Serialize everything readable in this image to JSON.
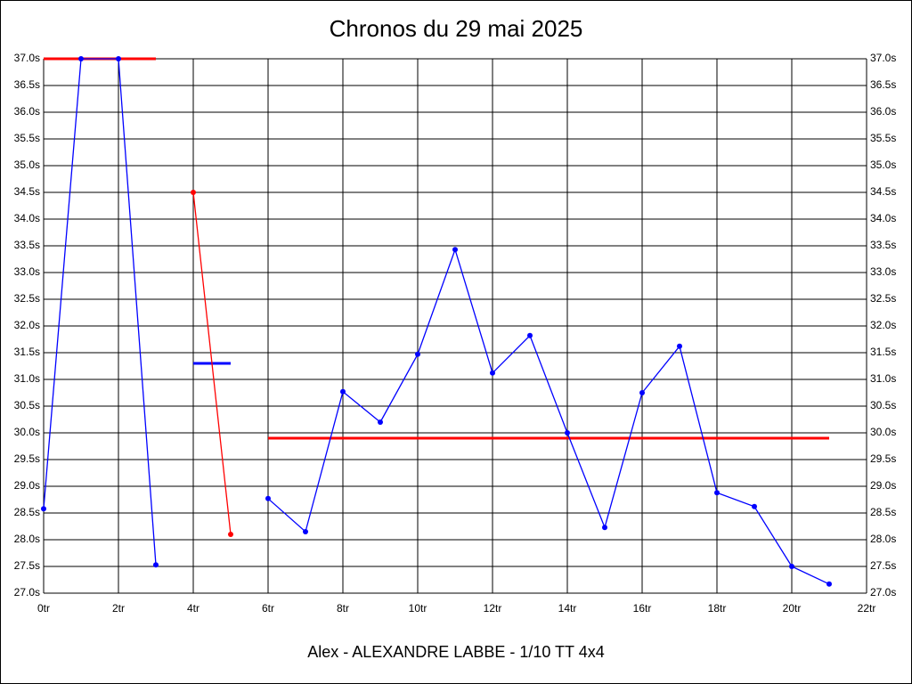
{
  "chart_data": {
    "type": "line",
    "title": "Chronos du 29 mai 2025",
    "subtitle": "Alex - ALEXANDRE LABBE - 1/10 TT 4x4",
    "x": [
      0,
      1,
      2,
      3,
      4,
      5,
      6,
      7,
      8,
      9,
      10,
      11,
      12,
      13,
      14,
      15,
      16,
      17,
      18,
      19,
      20,
      21
    ],
    "series": [
      {
        "color": "#0000ff",
        "values": [
          28.58,
          37.0,
          37.0,
          27.53,
          null,
          null,
          28.77,
          28.15,
          30.77,
          30.2,
          31.47,
          33.43,
          31.12,
          31.82,
          30.0,
          28.23,
          30.75,
          31.62,
          28.88,
          28.62,
          27.5,
          27.17
        ]
      },
      {
        "color": "#ff0000",
        "values": [
          null,
          null,
          null,
          null,
          34.5,
          28.1,
          null,
          null,
          null,
          null,
          null,
          null,
          null,
          null,
          null,
          null,
          null,
          null,
          null,
          null,
          null,
          null
        ]
      }
    ],
    "reference_lines": [
      {
        "from": 0,
        "to": 3,
        "value": 37.0,
        "color": "#ff0000"
      },
      {
        "from": 4,
        "to": 5,
        "value": 31.3,
        "color": "#0000ff"
      },
      {
        "from": 6,
        "to": 21,
        "value": 29.9,
        "color": "#ff0000"
      }
    ],
    "xlim": [
      0,
      22
    ],
    "xticks": [
      {
        "value": 0,
        "label": "0tr"
      },
      {
        "value": 2,
        "label": "2tr"
      },
      {
        "value": 4,
        "label": "4tr"
      },
      {
        "value": 6,
        "label": "6tr"
      },
      {
        "value": 8,
        "label": "8tr"
      },
      {
        "value": 10,
        "label": "10tr"
      },
      {
        "value": 12,
        "label": "12tr"
      },
      {
        "value": 14,
        "label": "14tr"
      },
      {
        "value": 16,
        "label": "16tr"
      },
      {
        "value": 18,
        "label": "18tr"
      },
      {
        "value": 20,
        "label": "20tr"
      },
      {
        "value": 22,
        "label": "22tr"
      }
    ],
    "ylim": [
      27.0,
      37.0
    ],
    "yticks": [
      {
        "value": 27.0,
        "label": "27.0s"
      },
      {
        "value": 27.5,
        "label": "27.5s"
      },
      {
        "value": 28.0,
        "label": "28.0s"
      },
      {
        "value": 28.5,
        "label": "28.5s"
      },
      {
        "value": 29.0,
        "label": "29.0s"
      },
      {
        "value": 29.5,
        "label": "29.5s"
      },
      {
        "value": 30.0,
        "label": "30.0s"
      },
      {
        "value": 30.5,
        "label": "30.5s"
      },
      {
        "value": 31.0,
        "label": "31.0s"
      },
      {
        "value": 31.5,
        "label": "31.5s"
      },
      {
        "value": 32.0,
        "label": "32.0s"
      },
      {
        "value": 32.5,
        "label": "32.5s"
      },
      {
        "value": 33.0,
        "label": "33.0s"
      },
      {
        "value": 33.5,
        "label": "33.5s"
      },
      {
        "value": 34.0,
        "label": "34.0s"
      },
      {
        "value": 34.5,
        "label": "34.5s"
      },
      {
        "value": 35.0,
        "label": "35.0s"
      },
      {
        "value": 35.5,
        "label": "35.5s"
      },
      {
        "value": 36.0,
        "label": "36.0s"
      },
      {
        "value": 36.5,
        "label": "36.5s"
      },
      {
        "value": 37.0,
        "label": "37.0s"
      }
    ],
    "grid": true
  }
}
